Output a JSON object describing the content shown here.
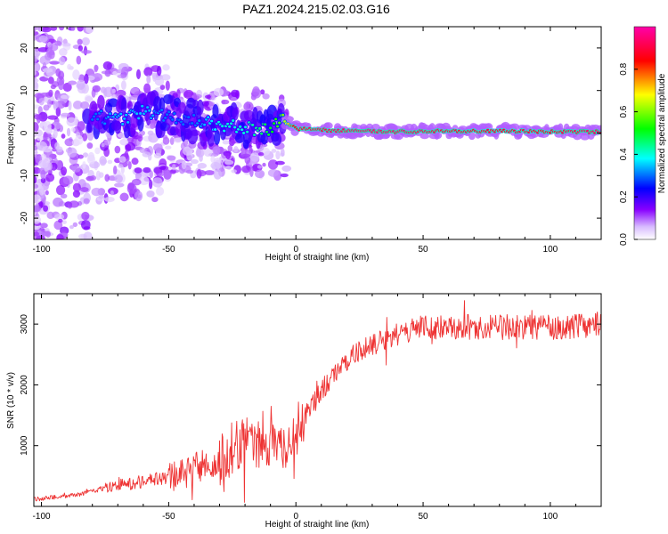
{
  "title": "PAZ1.2024.215.02.03.G16",
  "chart_data": [
    {
      "type": "heatmap",
      "xlabel": "Height of straight line (km)",
      "ylabel": "Frequency (Hz)",
      "xlim": [
        -103,
        120
      ],
      "ylim": [
        -25,
        25
      ],
      "x_ticks": [
        -100,
        -50,
        0,
        50,
        100
      ],
      "y_ticks": [
        -20,
        -10,
        0,
        10,
        20
      ],
      "grid": false,
      "colorbar": {
        "label": "Normalized spectral amplitude",
        "range": [
          0,
          1
        ],
        "ticks": [
          0.0,
          0.2,
          0.4,
          0.6,
          0.8
        ],
        "colormap": [
          "#ffffff",
          "#ccaaff",
          "#8800ff",
          "#0000ff",
          "#00ffff",
          "#00ff00",
          "#ffff00",
          "#ff0000",
          "#ff00aa"
        ]
      },
      "ridge": {
        "description_points_x": [
          -78,
          -70,
          -60,
          -50,
          -40,
          -30,
          -20,
          -10,
          -5,
          0,
          20,
          40,
          60,
          80,
          100,
          120
        ],
        "frequency": [
          4,
          3,
          5,
          4,
          3,
          2,
          1,
          1,
          3,
          1,
          0.5,
          0.3,
          0.5,
          0.5,
          0.3,
          0.3
        ],
        "amplitude": [
          0.3,
          0.35,
          0.35,
          0.3,
          0.3,
          0.4,
          0.4,
          0.5,
          0.6,
          0.9,
          0.95,
          0.95,
          0.9,
          0.9,
          0.9,
          0.95
        ]
      }
    },
    {
      "type": "line",
      "xlabel": "Height of straight line (km)",
      "ylabel": "SNR (10 * v/v)",
      "xlim": [
        -103,
        120
      ],
      "ylim": [
        0,
        3500
      ],
      "x_ticks": [
        -100,
        -50,
        0,
        50,
        100
      ],
      "y_ticks": [
        1000,
        2000,
        3000
      ],
      "grid": false,
      "series": [
        {
          "color": "#ee3333",
          "x": [
            -103,
            -95,
            -85,
            -75,
            -65,
            -55,
            -45,
            -35,
            -25,
            -20,
            -15,
            -10,
            -5,
            0,
            5,
            10,
            15,
            20,
            25,
            30,
            35,
            40,
            45,
            50,
            60,
            70,
            80,
            90,
            100,
            110,
            120
          ],
          "values": [
            120,
            150,
            200,
            300,
            380,
            450,
            520,
            700,
            900,
            1150,
            1100,
            1100,
            950,
            1150,
            1550,
            1900,
            2200,
            2400,
            2550,
            2650,
            2750,
            2850,
            2900,
            2950,
            2950,
            2950,
            2950,
            2950,
            2950,
            2970,
            3000
          ]
        }
      ]
    }
  ]
}
